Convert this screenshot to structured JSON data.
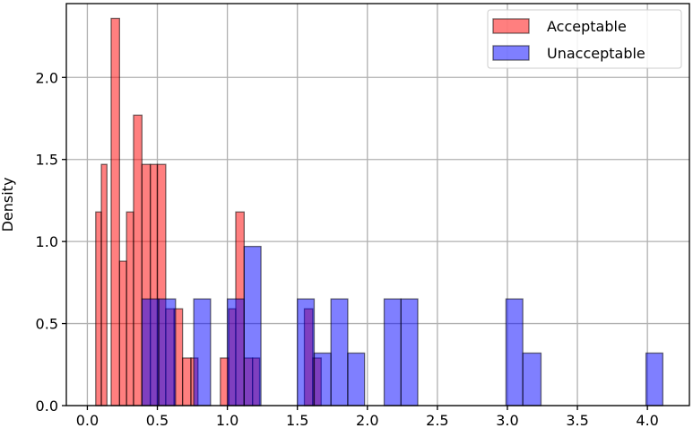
{
  "chart_data": {
    "type": "bar",
    "subtype": "overlapping-histogram",
    "title": "",
    "xlabel": "",
    "ylabel": "Density",
    "xlim": [
      -0.15,
      4.3
    ],
    "ylim": [
      0,
      2.45
    ],
    "xticks": [
      "0.0",
      "0.5",
      "1.0",
      "1.5",
      "2.0",
      "2.5",
      "3.0",
      "3.5",
      "4.0"
    ],
    "yticks": [
      "0.0",
      "0.5",
      "1.0",
      "1.5",
      "2.0"
    ],
    "grid": true,
    "legend_position": "top-right",
    "series": [
      {
        "name": "Acceptable",
        "color": "#ff0000",
        "bins": [
          {
            "x0": 0.06,
            "x1": 0.1,
            "y": 1.18
          },
          {
            "x0": 0.1,
            "x1": 0.14,
            "y": 1.47
          },
          {
            "x0": 0.17,
            "x1": 0.23,
            "y": 2.36
          },
          {
            "x0": 0.23,
            "x1": 0.28,
            "y": 0.88
          },
          {
            "x0": 0.28,
            "x1": 0.33,
            "y": 1.18
          },
          {
            "x0": 0.33,
            "x1": 0.39,
            "y": 1.77
          },
          {
            "x0": 0.39,
            "x1": 0.45,
            "y": 1.47
          },
          {
            "x0": 0.45,
            "x1": 0.5,
            "y": 1.47
          },
          {
            "x0": 0.5,
            "x1": 0.56,
            "y": 1.47
          },
          {
            "x0": 0.56,
            "x1": 0.62,
            "y": 0.59
          },
          {
            "x0": 0.62,
            "x1": 0.68,
            "y": 0.59
          },
          {
            "x0": 0.68,
            "x1": 0.74,
            "y": 0.29
          },
          {
            "x0": 0.74,
            "x1": 0.79,
            "y": 0.29
          },
          {
            "x0": 0.95,
            "x1": 1.01,
            "y": 0.29
          },
          {
            "x0": 1.01,
            "x1": 1.06,
            "y": 0.59
          },
          {
            "x0": 1.06,
            "x1": 1.12,
            "y": 1.18
          },
          {
            "x0": 1.12,
            "x1": 1.18,
            "y": 0.29
          },
          {
            "x0": 1.18,
            "x1": 1.23,
            "y": 0.29
          },
          {
            "x0": 1.55,
            "x1": 1.61,
            "y": 0.59
          },
          {
            "x0": 1.61,
            "x1": 1.67,
            "y": 0.29
          }
        ]
      },
      {
        "name": "Unacceptable",
        "color": "#0000ff",
        "bins": [
          {
            "x0": 0.39,
            "x1": 0.51,
            "y": 0.65
          },
          {
            "x0": 0.51,
            "x1": 0.63,
            "y": 0.65
          },
          {
            "x0": 0.76,
            "x1": 0.88,
            "y": 0.65
          },
          {
            "x0": 1.0,
            "x1": 1.12,
            "y": 0.65
          },
          {
            "x0": 1.12,
            "x1": 1.24,
            "y": 0.97
          },
          {
            "x0": 1.5,
            "x1": 1.62,
            "y": 0.65
          },
          {
            "x0": 1.62,
            "x1": 1.74,
            "y": 0.32
          },
          {
            "x0": 1.74,
            "x1": 1.86,
            "y": 0.65
          },
          {
            "x0": 1.86,
            "x1": 1.98,
            "y": 0.32
          },
          {
            "x0": 2.12,
            "x1": 2.24,
            "y": 0.65
          },
          {
            "x0": 2.24,
            "x1": 2.36,
            "y": 0.65
          },
          {
            "x0": 2.99,
            "x1": 3.11,
            "y": 0.65
          },
          {
            "x0": 3.11,
            "x1": 3.24,
            "y": 0.32
          },
          {
            "x0": 3.99,
            "x1": 4.11,
            "y": 0.32
          }
        ]
      }
    ]
  }
}
